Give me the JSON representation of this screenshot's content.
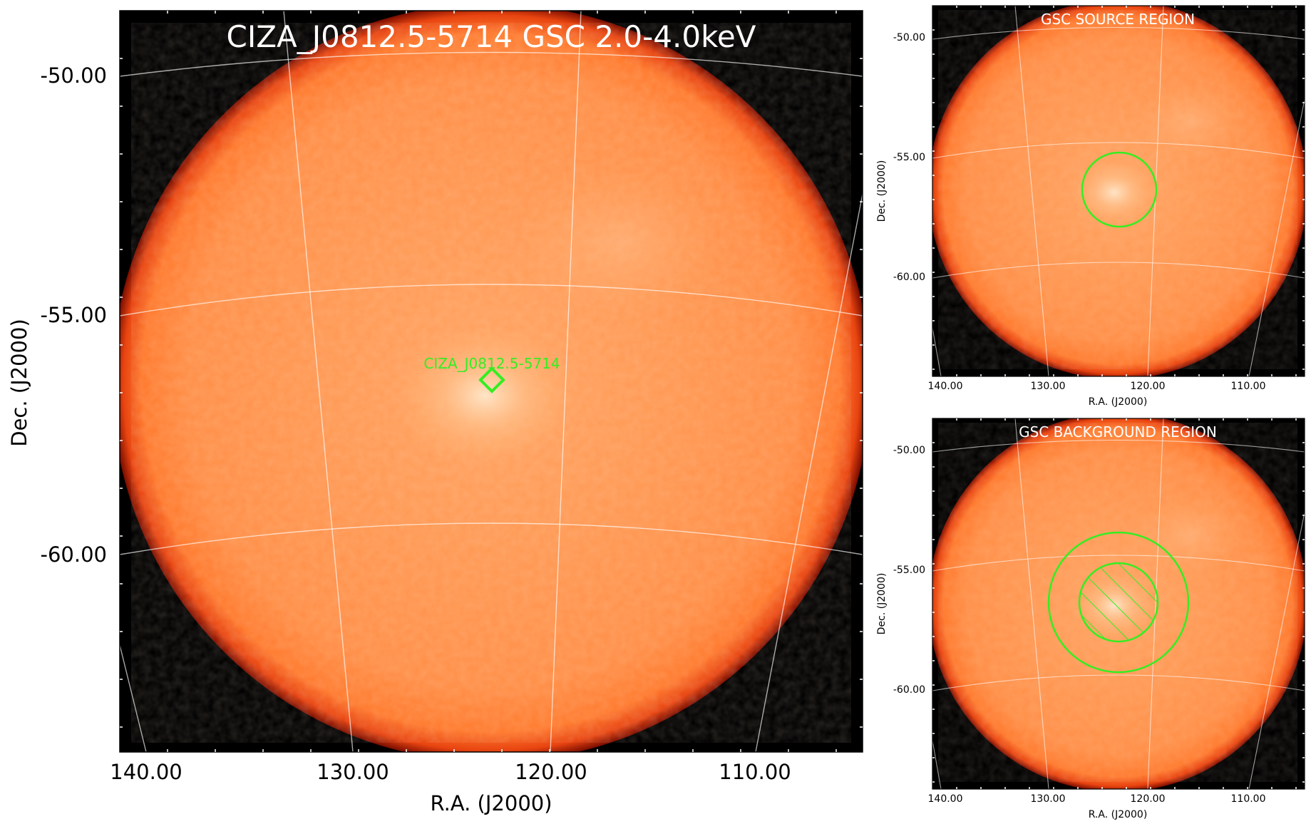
{
  "figure": {
    "main_panel": {
      "title": "CIZA_J0812.5-5714 GSC 2.0-4.0keV",
      "xlabel": "R.A. (J2000)",
      "ylabel": "Dec. (J2000)",
      "x_ticks": [
        "140.00",
        "130.00",
        "120.00",
        "110.00"
      ],
      "y_ticks": [
        "-50.00",
        "-55.00",
        "-60.00"
      ],
      "source_label": "CIZA_J0812.5-5714",
      "marker_shape": "diamond"
    },
    "source_panel": {
      "title": "GSC SOURCE REGION",
      "xlabel": "R.A. (J2000)",
      "ylabel": "Dec. (J2000)",
      "x_ticks": [
        "140.00",
        "130.00",
        "120.00",
        "110.00"
      ],
      "y_ticks": [
        "-50.00",
        "-55.00",
        "-60.00"
      ],
      "region": "circle"
    },
    "background_panel": {
      "title": "GSC BACKGROUND REGION",
      "xlabel": "R.A. (J2000)",
      "ylabel": "Dec. (J2000)",
      "x_ticks": [
        "140.00",
        "130.00",
        "120.00",
        "110.00"
      ],
      "y_ticks": [
        "-50.00",
        "-55.00",
        "-60.00"
      ],
      "region": "annulus with hatched (excluded) inner circle"
    }
  },
  "colors": {
    "image_core": "#ff9a52",
    "image_edge": "#d22200",
    "background_sky": "#000000",
    "region_green": "#33ee22",
    "grid": "#ffffff"
  },
  "chart_data": [
    {
      "type": "heatmap",
      "title": "CIZA_J0812.5-5714 GSC 2.0-4.0keV",
      "xlabel": "R.A. (J2000)",
      "ylabel": "Dec. (J2000)",
      "x_ticks": [
        140,
        130,
        120,
        110
      ],
      "y_ticks": [
        -50,
        -55,
        -60
      ],
      "xlim": [
        141.0,
        104.0
      ],
      "ylim": [
        -64.0,
        -48.6
      ],
      "grid": true,
      "field_of_view": {
        "ra_center": 122.8,
        "dec_center": -55.8,
        "radius_deg": 7.5
      },
      "source": {
        "name": "CIZA_J0812.5-5714",
        "ra": 122.8,
        "dec": -56.3
      }
    },
    {
      "type": "heatmap",
      "title": "GSC SOURCE REGION",
      "xlabel": "R.A. (J2000)",
      "ylabel": "Dec. (J2000)",
      "x_ticks": [
        140,
        130,
        120,
        110
      ],
      "y_ticks": [
        -50,
        -55,
        -60
      ],
      "grid": true,
      "source_region": {
        "ra": 122.8,
        "dec": -56.3,
        "radius_deg": 1.5
      }
    },
    {
      "type": "heatmap",
      "title": "GSC BACKGROUND REGION",
      "xlabel": "R.A. (J2000)",
      "ylabel": "Dec. (J2000)",
      "x_ticks": [
        140,
        130,
        120,
        110
      ],
      "y_ticks": [
        -50,
        -55,
        -60
      ],
      "grid": true,
      "background_annulus": {
        "ra": 122.8,
        "dec": -56.3,
        "inner_radius_deg": 1.6,
        "outer_radius_deg": 2.9
      }
    }
  ]
}
